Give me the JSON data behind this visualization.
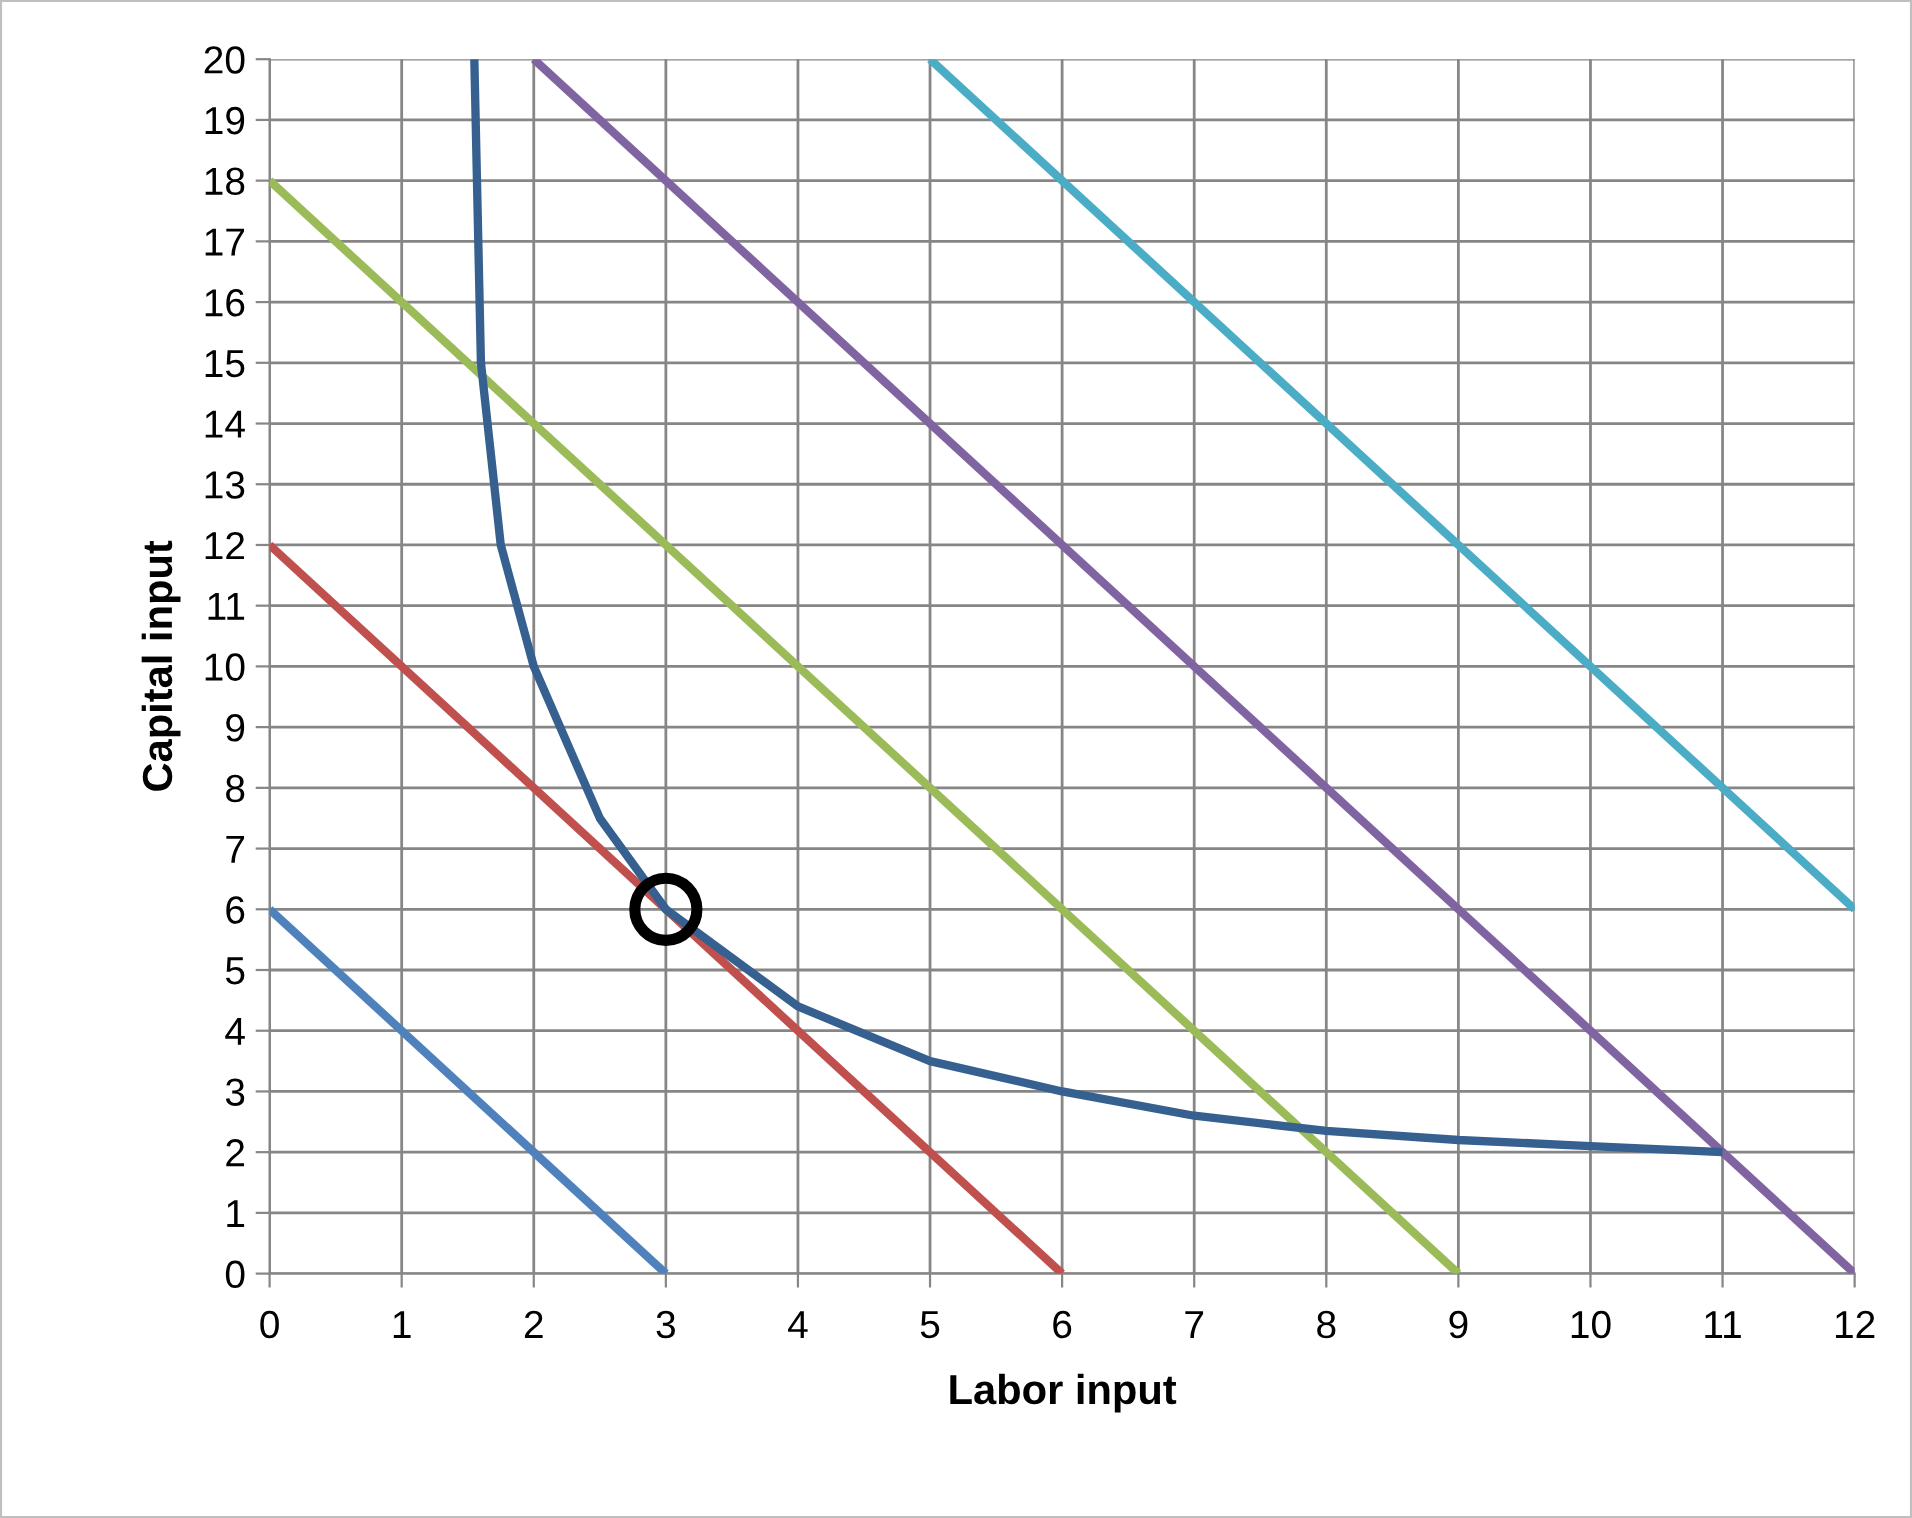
{
  "chart_data": {
    "type": "line",
    "xlabel": "Labor input",
    "ylabel": "Capital input",
    "xlim": [
      0,
      12
    ],
    "ylim": [
      0,
      20
    ],
    "xticks": [
      0,
      1,
      2,
      3,
      4,
      5,
      6,
      7,
      8,
      9,
      10,
      11,
      12
    ],
    "yticks": [
      0,
      1,
      2,
      3,
      4,
      5,
      6,
      7,
      8,
      9,
      10,
      11,
      12,
      13,
      14,
      15,
      16,
      17,
      18,
      19,
      20
    ],
    "grid": true,
    "legend": false,
    "marker": "none",
    "line_style": "solid",
    "series": [
      {
        "color": "#4f81bd",
        "x": [
          0,
          3
        ],
        "values": [
          6,
          0
        ]
      },
      {
        "color": "#c0504d",
        "x": [
          0,
          6
        ],
        "values": [
          12,
          0
        ]
      },
      {
        "color": "#9bbb59",
        "x": [
          0,
          9
        ],
        "values": [
          18,
          0
        ]
      },
      {
        "color": "#8064a2",
        "x": [
          2,
          12
        ],
        "values": [
          20,
          0
        ]
      },
      {
        "color": "#4bacc6",
        "x": [
          5,
          12
        ],
        "values": [
          20,
          6
        ]
      },
      {
        "color": "#35608f",
        "x": [
          1.55,
          1.6,
          1.75,
          2,
          2.5,
          3,
          4,
          5,
          6,
          7,
          8,
          9,
          10,
          11
        ],
        "values": [
          20,
          15,
          12,
          10,
          7.5,
          6,
          4.4,
          3.5,
          3,
          2.6,
          2.35,
          2.2,
          2.1,
          2
        ]
      },
      {
        "type": "scatter",
        "marker": "circle",
        "color": "#000000",
        "x": [
          3
        ],
        "values": [
          6
        ]
      }
    ]
  }
}
